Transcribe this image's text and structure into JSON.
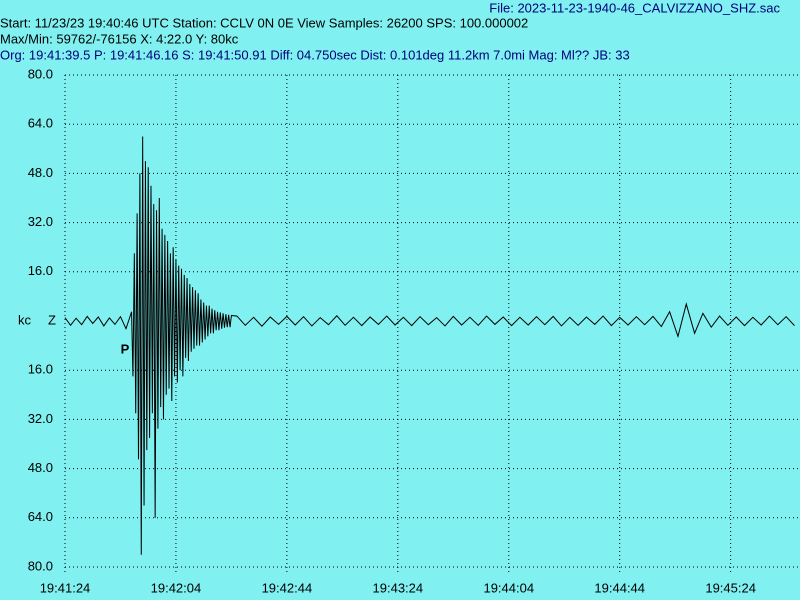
{
  "header": {
    "file": "File: 2023-11-23-1940-46_CALVIZZANO_SHZ.sac",
    "lines": [
      "Start: 11/23/23 19:40:46 UTC Station: CCLV 0N 0E View Samples: 26200  SPS: 100.000002",
      "Max/Min: 59762/-76156 X: 4:22.0 Y: 80kc",
      "Org: 19:41:39.5 P: 19:41:46.16 S: 19:41:50.91 Diff: 04.750sec Dist: 0.101deg 11.2km 7.0mi  Mag: Ml?? JB: 33"
    ]
  },
  "chart_data": {
    "type": "line",
    "color": "#000000",
    "grid": true,
    "ylabel": "kc",
    "channel": "Z",
    "annotations": [
      {
        "text": "P",
        "x": 70905.6,
        "y": -9.4
      }
    ],
    "xlim": [
      70884,
      71149
    ],
    "ylim": [
      -80,
      80
    ],
    "xticks": [
      {
        "value": 70884,
        "label": "19:41:24"
      },
      {
        "value": 70924,
        "label": "19:42:04"
      },
      {
        "value": 70964,
        "label": "19:42:44"
      },
      {
        "value": 71004,
        "label": "19:43:24"
      },
      {
        "value": 71044,
        "label": "19:44:04"
      },
      {
        "value": 71084,
        "label": "19:44:44"
      },
      {
        "value": 71124,
        "label": "19:45:24"
      }
    ],
    "yticks": [
      {
        "value": 80,
        "label": "80.0"
      },
      {
        "value": 64,
        "label": "64.0"
      },
      {
        "value": 48,
        "label": "48.0"
      },
      {
        "value": 32,
        "label": "32.0"
      },
      {
        "value": 16,
        "label": "16.0"
      },
      {
        "value": -16,
        "label": "16.0"
      },
      {
        "value": -32,
        "label": "32.0"
      },
      {
        "value": -48,
        "label": "48.0"
      },
      {
        "value": -64,
        "label": "64.0"
      },
      {
        "value": -80,
        "label": "80.0"
      }
    ],
    "x": [
      70884,
      70886,
      70888,
      70890,
      70892,
      70894,
      70896,
      70898,
      70900,
      70902,
      70904,
      70906,
      70908,
      70908.5,
      70909,
      70909.5,
      70910,
      70910.5,
      70911,
      70911.5,
      70912,
      70912.5,
      70913,
      70913.5,
      70914,
      70914.5,
      70915,
      70915.5,
      70916,
      70916.5,
      70917,
      70917.5,
      70918,
      70918.5,
      70919,
      70919.5,
      70920,
      70920.5,
      70921,
      70921.5,
      70922,
      70922.5,
      70923,
      70923.5,
      70924,
      70924.5,
      70925,
      70925.5,
      70926,
      70926.5,
      70927,
      70927.5,
      70928,
      70928.5,
      70929,
      70929.5,
      70930,
      70930.5,
      70931,
      70931.5,
      70932,
      70932.5,
      70933,
      70933.5,
      70934,
      70934.5,
      70935,
      70935.5,
      70936,
      70936.5,
      70937,
      70937.5,
      70938,
      70938.5,
      70939,
      70939.5,
      70940,
      70940.5,
      70941,
      70941.5,
      70942,
      70942.5,
      70943,
      70943.5,
      70944,
      70946,
      70949,
      70952,
      70955,
      70958,
      70961,
      70964,
      70967,
      70970,
      70973,
      70976,
      70979,
      70982,
      70985,
      70988,
      70991,
      70994,
      70997,
      71000,
      71003,
      71006,
      71009,
      71012,
      71015,
      71018,
      71021,
      71024,
      71027,
      71030,
      71033,
      71036,
      71039,
      71042,
      71045,
      71048,
      71051,
      71054,
      71057,
      71060,
      71063,
      71066,
      71069,
      71072,
      71075,
      71078,
      71081,
      71084,
      71087,
      71090,
      71093,
      71096,
      71099,
      71102,
      71105,
      71108,
      71111,
      71114,
      71117,
      71120,
      71123,
      71126,
      71129,
      71132,
      71135,
      71138,
      71141,
      71144,
      71147
    ],
    "values": [
      1.1,
      -1.4,
      0.9,
      -1.2,
      1.5,
      -0.8,
      1.3,
      -1.6,
      1.0,
      -1.1,
      1.4,
      -2.5,
      3,
      -18,
      22,
      -30,
      35,
      -45,
      48,
      -76,
      60,
      -60,
      52,
      -42,
      50,
      -38,
      44,
      -30,
      38,
      -64,
      36,
      -35,
      40,
      -28,
      30,
      -32,
      28,
      -24,
      26,
      -22,
      22,
      -26,
      24,
      -18,
      20,
      -20,
      18,
      -16,
      17,
      -18,
      15,
      -12,
      14,
      -13,
      12,
      -10,
      11,
      -9,
      10,
      -8,
      9,
      -8,
      7,
      -7,
      6,
      -6,
      5,
      -5,
      5,
      -4,
      4,
      -4,
      3.5,
      -3,
      3,
      -3,
      2.8,
      -2.5,
      2.5,
      -2.2,
      2.2,
      -2,
      2,
      -2,
      1.8,
      1.6,
      -1.4,
      1.2,
      -1.7,
      1.3,
      -1.1,
      1.5,
      -1.3,
      1.4,
      -1.6,
      1.1,
      -1.2,
      1.7,
      -1.4,
      1.2,
      -1.5,
      1.3,
      -1.1,
      1.6,
      -1.3,
      1.2,
      -1.5,
      1.4,
      -1.2,
      1.1,
      -1.6,
      1.5,
      -1.3,
      1.2,
      -1.4,
      1.6,
      -1.1,
      1.3,
      -1.5,
      1.2,
      -1.3,
      1.4,
      -1.2,
      1.5,
      -1.6,
      1.2,
      -1.4,
      1.3,
      -1.1,
      1.6,
      -1.5,
      1.2,
      -1.3,
      1.4,
      -1.2,
      1.5,
      -1.8,
      3,
      -5,
      5.5,
      -4,
      2.5,
      -2,
      1.6,
      -1.4,
      1.3,
      -1.5,
      1.2,
      -1.3,
      1.6,
      -1.2,
      1.4,
      -1.5
    ]
  }
}
